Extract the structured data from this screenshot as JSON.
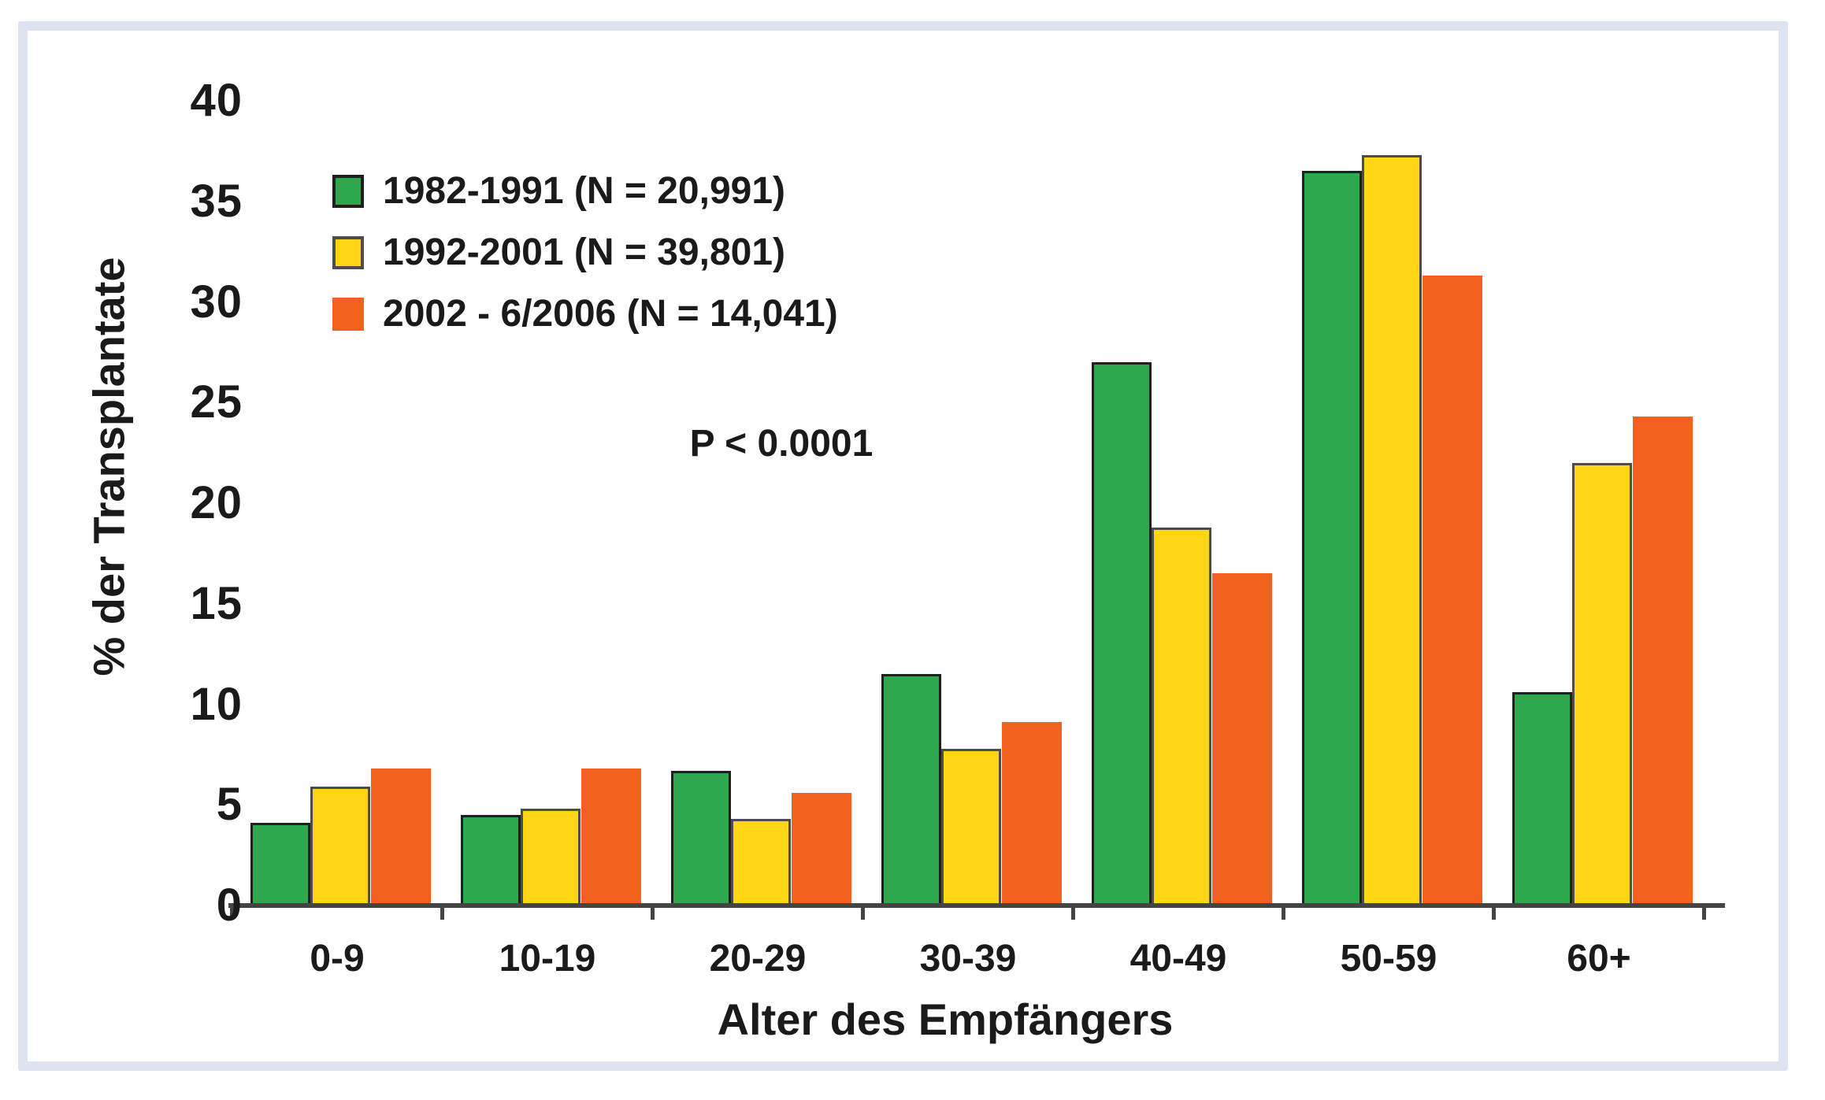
{
  "frame": {
    "border_color": "#dee3f2",
    "panel_background": "#ffffff"
  },
  "chart_data": {
    "type": "bar",
    "title": "",
    "ylabel": "% der Transplantate",
    "xlabel": "Alter des Empfängers",
    "annotation": "P < 0.0001",
    "categories": [
      "0-9",
      "10-19",
      "20-29",
      "30-39",
      "40-49",
      "50-59",
      "60+"
    ],
    "series": [
      {
        "name": "1982-1991 (N = 20,991)",
        "color": "#2da84d",
        "border": "#1f1f1f",
        "values": [
          4.1,
          4.5,
          6.7,
          11.5,
          27.0,
          36.5,
          10.6
        ]
      },
      {
        "name": "1992-2001 (N = 39,801)",
        "color": "#ffd514",
        "border": "#4d4d4d",
        "values": [
          5.9,
          4.8,
          4.3,
          7.8,
          18.8,
          37.3,
          22.0
        ]
      },
      {
        "name": "2002 - 6/2006 (N = 14,041)",
        "color": "#f2611d",
        "border": "none",
        "values": [
          6.8,
          6.8,
          5.6,
          9.1,
          16.5,
          31.3,
          24.3
        ]
      }
    ],
    "ylim": [
      0,
      40
    ],
    "yticks": [
      0,
      5,
      10,
      15,
      20,
      25,
      30,
      35,
      40
    ],
    "grid": false,
    "legend_position": "upper-left",
    "axis_color": "#444444",
    "text_color": "#1a1a1a"
  }
}
